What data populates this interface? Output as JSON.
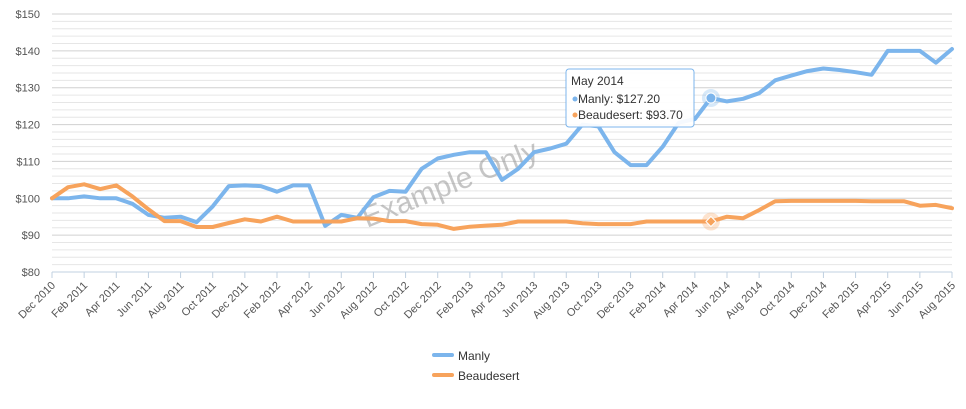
{
  "chart_data": {
    "type": "line",
    "ylim": [
      80,
      150
    ],
    "ytick_step": 10,
    "y_prefix": "$",
    "x": [
      "Dec 2010",
      "Jan 2011",
      "Feb 2011",
      "Mar 2011",
      "Apr 2011",
      "May 2011",
      "Jun 2011",
      "Jul 2011",
      "Aug 2011",
      "Sep 2011",
      "Oct 2011",
      "Nov 2011",
      "Dec 2011",
      "Jan 2012",
      "Feb 2012",
      "Mar 2012",
      "Apr 2012",
      "May 2012",
      "Jun 2012",
      "Jul 2012",
      "Aug 2012",
      "Sep 2012",
      "Oct 2012",
      "Nov 2012",
      "Dec 2012",
      "Jan 2013",
      "Feb 2013",
      "Mar 2013",
      "Apr 2013",
      "May 2013",
      "Jun 2013",
      "Jul 2013",
      "Aug 2013",
      "Sep 2013",
      "Oct 2013",
      "Nov 2013",
      "Dec 2013",
      "Jan 2014",
      "Feb 2014",
      "Mar 2014",
      "Apr 2014",
      "May 2014",
      "Jun 2014",
      "Jul 2014",
      "Aug 2014",
      "Sep 2014",
      "Oct 2014",
      "Nov 2014",
      "Dec 2014",
      "Jan 2015",
      "Feb 2015",
      "Mar 2015",
      "Apr 2015",
      "May 2015",
      "Jun 2015",
      "Jul 2015",
      "Aug 2015"
    ],
    "xtick_labels": [
      "Dec 2010",
      "Feb 2011",
      "Apr 2011",
      "Jun 2011",
      "Aug 2011",
      "Oct 2011",
      "Dec 2011",
      "Feb 2012",
      "Apr 2012",
      "Jun 2012",
      "Aug 2012",
      "Oct 2012",
      "Dec 2012",
      "Feb 2013",
      "Apr 2013",
      "Jun 2013",
      "Aug 2013",
      "Oct 2013",
      "Dec 2013",
      "Feb 2014",
      "Apr 2014",
      "Jun 2014",
      "Aug 2014",
      "Oct 2014",
      "Dec 2014",
      "Feb 2015",
      "Apr 2015",
      "Jun 2015",
      "Aug 2015"
    ],
    "series": [
      {
        "name": "Manly",
        "color": "#7cb5ec",
        "values": [
          100,
          100,
          100.5,
          100,
          100,
          98.5,
          95.5,
          94.7,
          95,
          93.5,
          97.8,
          103.3,
          103.5,
          103.3,
          101.8,
          103.5,
          103.5,
          92.5,
          95.5,
          94.7,
          100.3,
          102,
          101.8,
          108,
          110.8,
          111.8,
          112.5,
          112.5,
          105,
          108,
          112.5,
          113.5,
          114.8,
          120,
          119.5,
          112.5,
          109,
          109,
          114,
          120.5,
          121.5,
          127.2,
          126.3,
          127,
          128.5,
          132,
          133.3,
          134.5,
          135.2,
          134.8,
          134.2,
          133.5,
          140,
          140,
          140,
          136.8,
          140.5
        ]
      },
      {
        "name": "Beaudesert",
        "color": "#f7a35c",
        "values": [
          100,
          103,
          103.8,
          102.5,
          103.5,
          100.5,
          97,
          93.8,
          93.8,
          92.2,
          92.2,
          93.3,
          94.3,
          93.7,
          95,
          93.7,
          93.7,
          93.7,
          93.7,
          94.6,
          94.5,
          93.8,
          93.8,
          93,
          92.8,
          91.7,
          92.3,
          92.6,
          92.8,
          93.7,
          93.7,
          93.7,
          93.7,
          93.2,
          93,
          93,
          93,
          93.7,
          93.7,
          93.7,
          93.7,
          93.7,
          95,
          94.6,
          96.8,
          99.2,
          99.3,
          99.3,
          99.3,
          99.3,
          99.3,
          99.2,
          99.2,
          99.2,
          98,
          98.2,
          97.3
        ]
      }
    ],
    "tooltip": {
      "title": "May 2014",
      "lines": [
        {
          "series": "Manly",
          "label": "Manly: $127.20",
          "color": "#7cb5ec"
        },
        {
          "series": "Beaudesert",
          "label": "Beaudesert: $93.70",
          "color": "#f7a35c"
        }
      ],
      "index": 41
    },
    "watermark": "Example Only",
    "legend": {
      "position": "bottom-center",
      "items": [
        "Manly",
        "Beaudesert"
      ]
    },
    "grid": true
  }
}
